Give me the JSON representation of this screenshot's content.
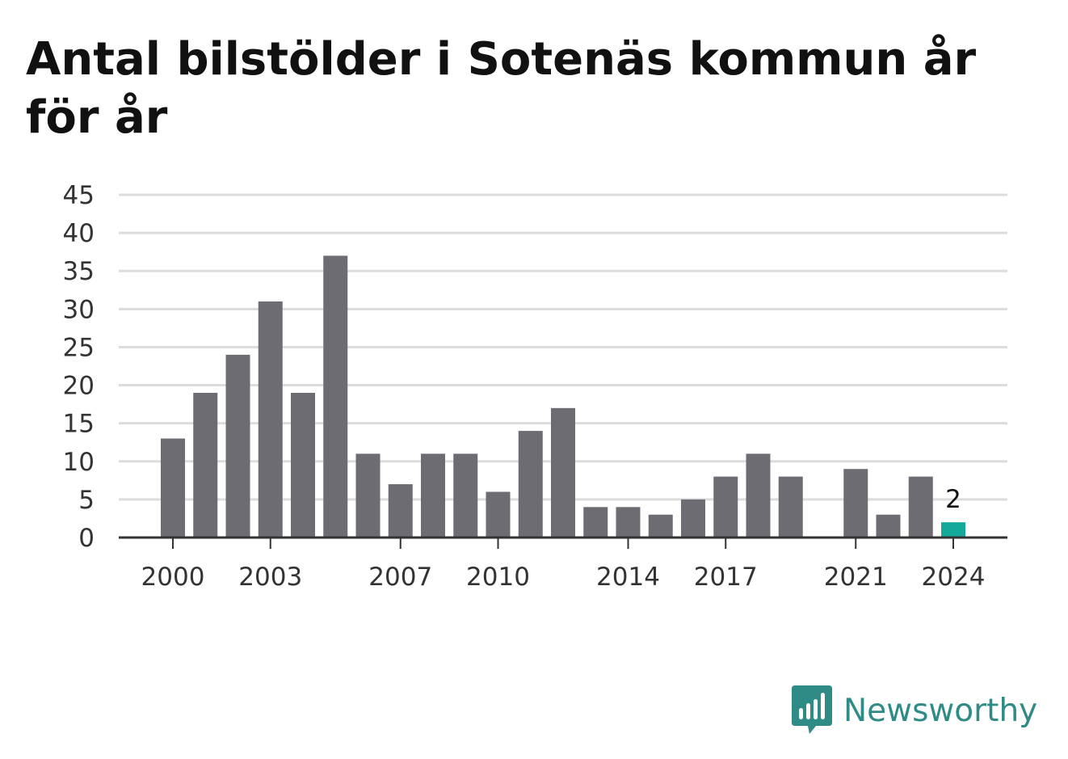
{
  "chart_data": {
    "type": "bar",
    "title": "Antal bilstölder i Sotenäs kommun år för år",
    "x": [
      2000,
      2001,
      2002,
      2003,
      2004,
      2005,
      2006,
      2007,
      2008,
      2009,
      2010,
      2011,
      2012,
      2013,
      2014,
      2015,
      2016,
      2017,
      2018,
      2019,
      2020,
      2021,
      2022,
      2023,
      2024
    ],
    "values": [
      13,
      19,
      24,
      31,
      19,
      37,
      11,
      7,
      11,
      11,
      6,
      14,
      17,
      4,
      4,
      3,
      5,
      8,
      11,
      8,
      0,
      9,
      3,
      8,
      2
    ],
    "x_tick_labels": [
      "2000",
      "2003",
      "2007",
      "2010",
      "2014",
      "2017",
      "2021",
      "2024"
    ],
    "y_ticks": [
      0,
      5,
      10,
      15,
      20,
      25,
      30,
      35,
      40,
      45
    ],
    "ylim": [
      0,
      45
    ],
    "grid": true,
    "highlight": {
      "index": 24,
      "label": "2"
    },
    "colors": {
      "bar": "#6d6c73",
      "highlight": "#14a99a",
      "grid": "#dcdcdc",
      "axis": "#333333"
    }
  },
  "brand": {
    "name": "Newsworthy",
    "icon": "bar-chart-speech-bubble-icon",
    "color": "#2e8b86"
  }
}
